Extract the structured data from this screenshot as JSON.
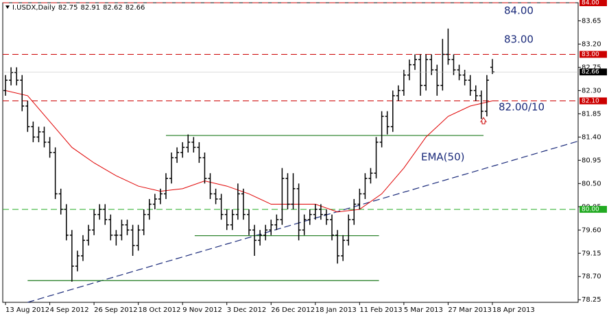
{
  "chart_data": {
    "type": "ohlc",
    "header": {
      "symbol": "I.USDX,Daily",
      "ohlc": [
        82.75,
        82.91,
        82.62,
        82.66
      ]
    },
    "categories": [
      "13 Aug 2012",
      "4 Sep 2012",
      "26 Sep 2012",
      "18 Oct 2012",
      "9 Nov 2012",
      "3 Dec 2012",
      "26 Dec 2012",
      "18 Jan 2013",
      "11 Feb 2013",
      "5 Mar 2013",
      "27 Mar 2013",
      "18 Apr 2013"
    ],
    "category_x": [
      0,
      8,
      16,
      24,
      32,
      40,
      48,
      56,
      64,
      72,
      80,
      88
    ],
    "xlim": [
      -0.5,
      103.5
    ],
    "ylim": [
      78.2,
      84.0
    ],
    "yticks": [
      78.25,
      {
        "value": 78.7,
        "label": "78.70"
      },
      79.15,
      {
        "value": 79.6,
        "label": "79.60"
      },
      80.05,
      {
        "value": 80.5,
        "label": "80.50"
      },
      80.95,
      {
        "value": 81.4,
        "label": "81.40"
      },
      81.85,
      {
        "value": 82.3,
        "label": "82.30"
      },
      82.75,
      {
        "value": 83.2,
        "label": "83.20"
      },
      83.65
    ],
    "color": "#000000",
    "open": [
      82.3,
      82.5,
      82.65,
      82.5,
      82.0,
      81.6,
      81.4,
      81.5,
      81.3,
      81.1,
      80.3,
      80.0,
      79.5,
      78.9,
      79.1,
      79.4,
      79.6,
      79.9,
      80.0,
      79.8,
      79.5,
      79.5,
      79.7,
      79.6,
      79.3,
      79.6,
      79.9,
      80.1,
      80.2,
      80.3,
      80.6,
      81.0,
      81.1,
      81.2,
      81.3,
      81.2,
      81.0,
      80.6,
      80.3,
      80.2,
      79.9,
      79.7,
      79.9,
      80.3,
      79.9,
      79.6,
      79.4,
      79.5,
      79.6,
      79.7,
      79.8,
      80.6,
      80.1,
      80.4,
      79.6,
      79.8,
      79.9,
      80.0,
      79.9,
      79.8,
      79.5,
      79.1,
      79.4,
      79.8,
      80.1,
      80.3,
      80.6,
      80.7,
      81.3,
      81.8,
      81.6,
      82.2,
      82.3,
      82.6,
      82.8,
      82.9,
      82.4,
      82.9,
      82.7,
      82.4,
      83.0,
      82.9,
      82.7,
      82.6,
      82.5,
      82.3,
      82.2,
      81.9,
      82.75
    ],
    "high": [
      82.6,
      82.75,
      82.75,
      82.6,
      82.1,
      81.7,
      81.6,
      81.6,
      81.4,
      81.2,
      80.4,
      80.1,
      79.6,
      79.2,
      79.5,
      79.7,
      80.0,
      80.1,
      80.1,
      79.9,
      79.6,
      79.8,
      79.8,
      79.7,
      79.7,
      80.0,
      80.2,
      80.3,
      80.4,
      80.7,
      81.1,
      81.2,
      81.3,
      81.45,
      81.4,
      81.3,
      81.1,
      80.7,
      80.4,
      80.3,
      80.0,
      80.0,
      80.5,
      80.4,
      80.0,
      79.7,
      79.6,
      79.7,
      79.8,
      79.9,
      80.8,
      80.7,
      80.7,
      80.5,
      79.9,
      80.0,
      80.1,
      80.1,
      80.0,
      79.9,
      79.6,
      79.5,
      79.9,
      80.2,
      80.4,
      80.7,
      80.8,
      81.4,
      81.9,
      81.9,
      82.3,
      82.4,
      82.7,
      82.9,
      83.0,
      83.0,
      83.0,
      83.0,
      82.8,
      83.3,
      83.5,
      83.0,
      82.8,
      82.7,
      82.6,
      82.4,
      82.3,
      82.6,
      82.91
    ],
    "low": [
      82.2,
      82.4,
      82.4,
      81.9,
      81.5,
      81.3,
      81.3,
      81.2,
      81.0,
      80.2,
      79.9,
      79.4,
      78.6,
      78.8,
      79.0,
      79.3,
      79.5,
      79.8,
      79.7,
      79.4,
      79.3,
      79.4,
      79.5,
      79.1,
      79.2,
      79.5,
      79.8,
      80.0,
      80.1,
      80.2,
      80.5,
      80.9,
      81.0,
      81.1,
      81.1,
      80.9,
      80.5,
      80.2,
      80.1,
      79.8,
      79.6,
      79.6,
      79.8,
      79.8,
      79.5,
      79.1,
      79.3,
      79.4,
      79.5,
      79.6,
      79.7,
      80.0,
      80.0,
      79.4,
      79.5,
      79.7,
      79.8,
      79.8,
      79.7,
      79.4,
      78.95,
      79.0,
      79.3,
      79.7,
      80.0,
      80.2,
      80.5,
      80.6,
      81.2,
      81.45,
      81.5,
      82.1,
      82.2,
      82.5,
      82.7,
      82.2,
      82.3,
      82.6,
      82.2,
      82.3,
      82.8,
      82.6,
      82.5,
      82.4,
      82.2,
      82.1,
      81.75,
      81.8,
      82.62
    ],
    "close": [
      82.5,
      82.65,
      82.5,
      82.0,
      81.6,
      81.4,
      81.5,
      81.3,
      81.1,
      80.3,
      80.0,
      79.5,
      78.9,
      79.1,
      79.4,
      79.6,
      79.9,
      80.0,
      79.8,
      79.5,
      79.5,
      79.7,
      79.6,
      79.3,
      79.6,
      79.9,
      80.1,
      80.2,
      80.3,
      80.6,
      81.0,
      81.1,
      81.2,
      81.3,
      81.2,
      81.0,
      80.6,
      80.3,
      80.2,
      79.9,
      79.7,
      79.9,
      80.3,
      79.9,
      79.6,
      79.4,
      79.5,
      79.6,
      79.7,
      79.8,
      80.6,
      80.1,
      80.4,
      79.6,
      79.8,
      79.9,
      80.0,
      79.9,
      79.8,
      79.5,
      79.1,
      79.4,
      79.8,
      80.1,
      80.3,
      80.6,
      80.7,
      81.3,
      81.8,
      81.6,
      82.2,
      82.3,
      82.6,
      82.8,
      82.9,
      82.4,
      82.9,
      82.7,
      82.4,
      83.0,
      82.9,
      82.7,
      82.6,
      82.5,
      82.3,
      82.2,
      81.9,
      82.5,
      82.66
    ],
    "ema": {
      "name": "EMA(50)",
      "color": "#e00000",
      "x": [
        0,
        4,
        8,
        12,
        16,
        20,
        24,
        28,
        32,
        36,
        40,
        44,
        48,
        52,
        56,
        60,
        64,
        68,
        72,
        76,
        80,
        84,
        88
      ],
      "values": [
        82.3,
        82.2,
        81.7,
        81.2,
        80.9,
        80.65,
        80.45,
        80.35,
        80.4,
        80.55,
        80.45,
        80.3,
        80.1,
        80.1,
        80.1,
        79.95,
        80.0,
        80.3,
        80.8,
        81.4,
        81.8,
        82.0,
        82.1
      ]
    },
    "trendline": {
      "color": "#1a2a7a",
      "x": [
        4,
        103.5
      ],
      "values": [
        78.2,
        81.32
      ]
    },
    "supports": [
      {
        "color": "#1e7a1e",
        "x": [
          4,
          67.5
        ],
        "values": [
          78.62,
          78.62
        ]
      },
      {
        "color": "#1e7a1e",
        "x": [
          34.2,
          67.5
        ],
        "values": [
          79.49,
          79.49
        ]
      },
      {
        "color": "#1e7a1e",
        "x": [
          29,
          86.4
        ],
        "values": [
          81.43,
          81.43
        ]
      }
    ],
    "levels": [
      {
        "value": 84.0,
        "label": "84.00",
        "color": "#cc0000"
      },
      {
        "value": 83.0,
        "label": "83.00",
        "color": "#cc0000"
      },
      {
        "value": 82.1,
        "label": "82.10",
        "color": "#cc0000"
      },
      {
        "value": 80.0,
        "label": "80.00",
        "color": "#22aa22"
      }
    ],
    "last_price": 82.66,
    "annotations": [
      "84.00",
      "83.00",
      "82.00/10",
      "EMA(50)"
    ]
  }
}
